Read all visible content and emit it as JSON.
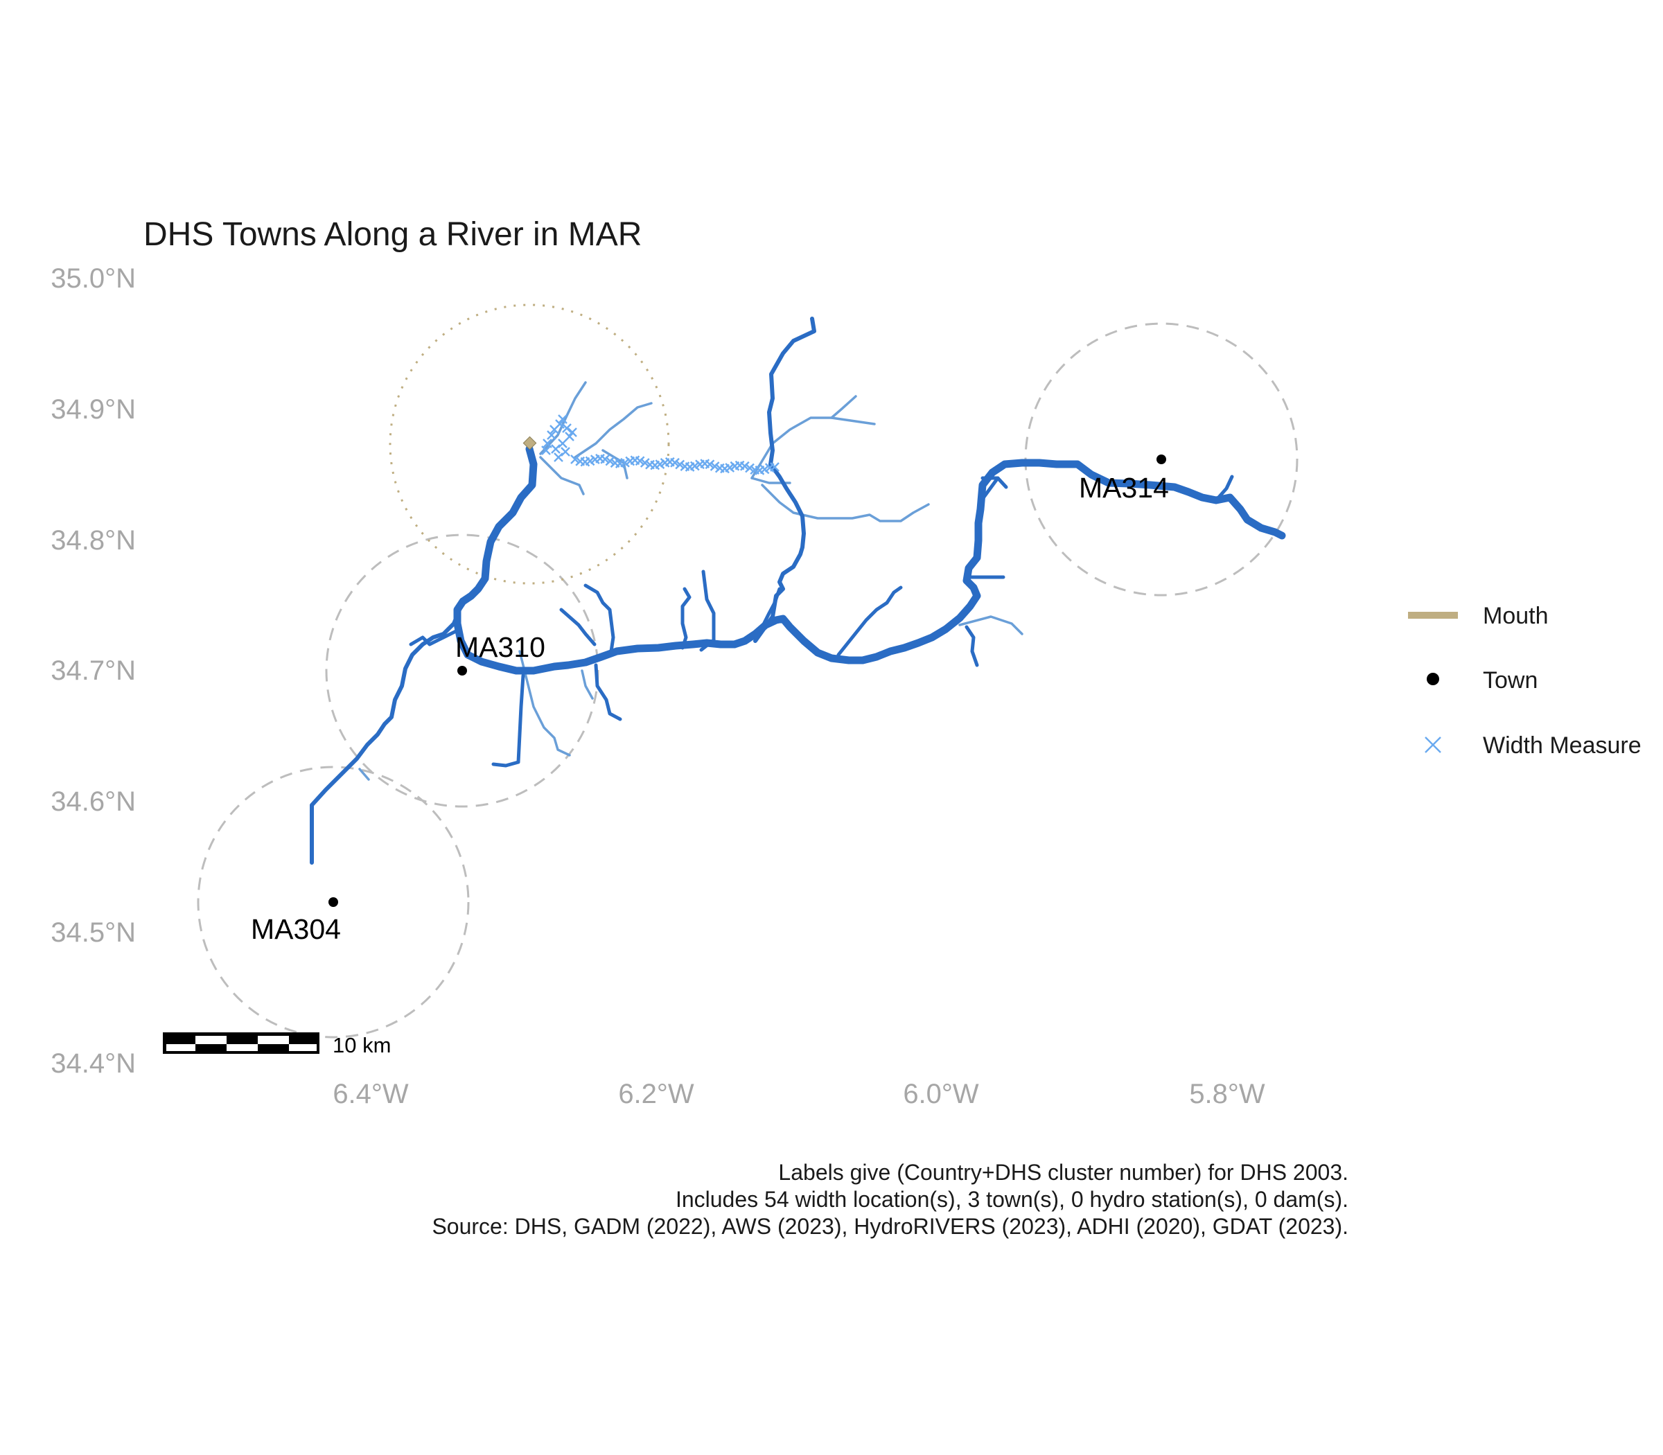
{
  "title": "DHS Towns Along a River in MAR",
  "axes": {
    "y_ticks": [
      "35.0°N",
      "34.9°N",
      "34.8°N",
      "34.7°N",
      "34.6°N",
      "34.5°N",
      "34.4°N"
    ],
    "x_ticks": [
      "6.4°W",
      "6.2°W",
      "6.0°W",
      "5.8°W"
    ]
  },
  "towns": [
    {
      "label": "MA304"
    },
    {
      "label": "MA310"
    },
    {
      "label": "MA314"
    }
  ],
  "legend": {
    "mouth": "Mouth",
    "town": "Town",
    "width_measure": "Width Measure"
  },
  "scale_bar": {
    "label": "10 km"
  },
  "caption": {
    "line1": "Labels give (Country+DHS cluster number) for DHS 2003.",
    "line2": "Includes 54 width location(s), 3 town(s), 0 hydro station(s), 0 dam(s).",
    "line3": "Source: DHS, GADM (2022), AWS (2023), HydroRIVERS (2023), ADHI (2020), GDAT (2023)."
  },
  "colors": {
    "river_main": "#2a6cc4",
    "river_tributary": "#6a9fd8",
    "width_measure": "#6aaaf0",
    "mouth": "#bfae82",
    "town": "#000000",
    "buffer_circle": "#bdbdbd"
  }
}
